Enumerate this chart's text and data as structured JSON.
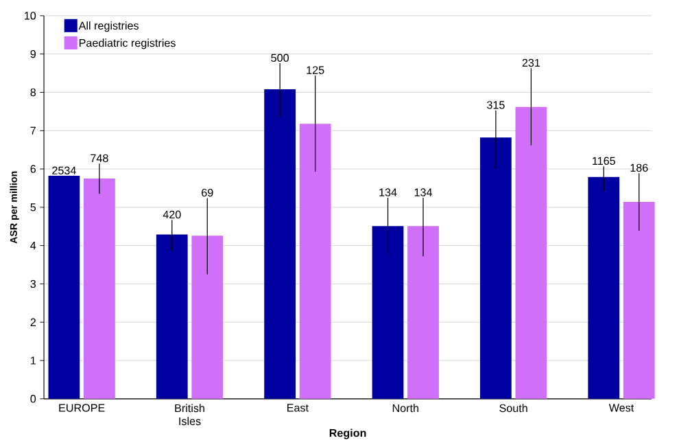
{
  "chart_data": {
    "type": "bar",
    "xlabel": "Region",
    "ylabel": "ASR per million",
    "categories": [
      "EUROPE",
      "British Isles",
      "East",
      "North",
      "South",
      "West"
    ],
    "series": [
      {
        "name": "All registries",
        "color": "#0000a0",
        "values": [
          5.82,
          4.29,
          8.08,
          4.51,
          6.82,
          5.79
        ],
        "errors": [
          null,
          [
            3.87,
            4.67
          ],
          [
            7.35,
            8.76
          ],
          [
            3.72,
            5.25
          ],
          [
            6.01,
            7.53
          ],
          [
            5.42,
            6.07
          ]
        ]
      },
      {
        "name": "Paediatric registries",
        "color": "#d070f8",
        "values": [
          5.75,
          4.26,
          7.18,
          4.51,
          7.62,
          5.14
        ],
        "errors": [
          [
            5.35,
            6.14
          ],
          [
            3.25,
            5.24
          ],
          [
            5.93,
            8.44
          ],
          [
            3.72,
            5.25
          ],
          [
            6.62,
            8.63
          ],
          [
            4.39,
            5.89
          ]
        ]
      }
    ],
    "annotations": [
      "2534",
      "748",
      "420",
      "69",
      "500",
      "125",
      "134",
      "134",
      "315",
      "231",
      "1165",
      "186"
    ],
    "ylim": [
      0,
      10
    ],
    "yticks": [
      0,
      1,
      2,
      3,
      4,
      5,
      6,
      7,
      8,
      9,
      10
    ],
    "grid": "y",
    "legend": "top left"
  }
}
